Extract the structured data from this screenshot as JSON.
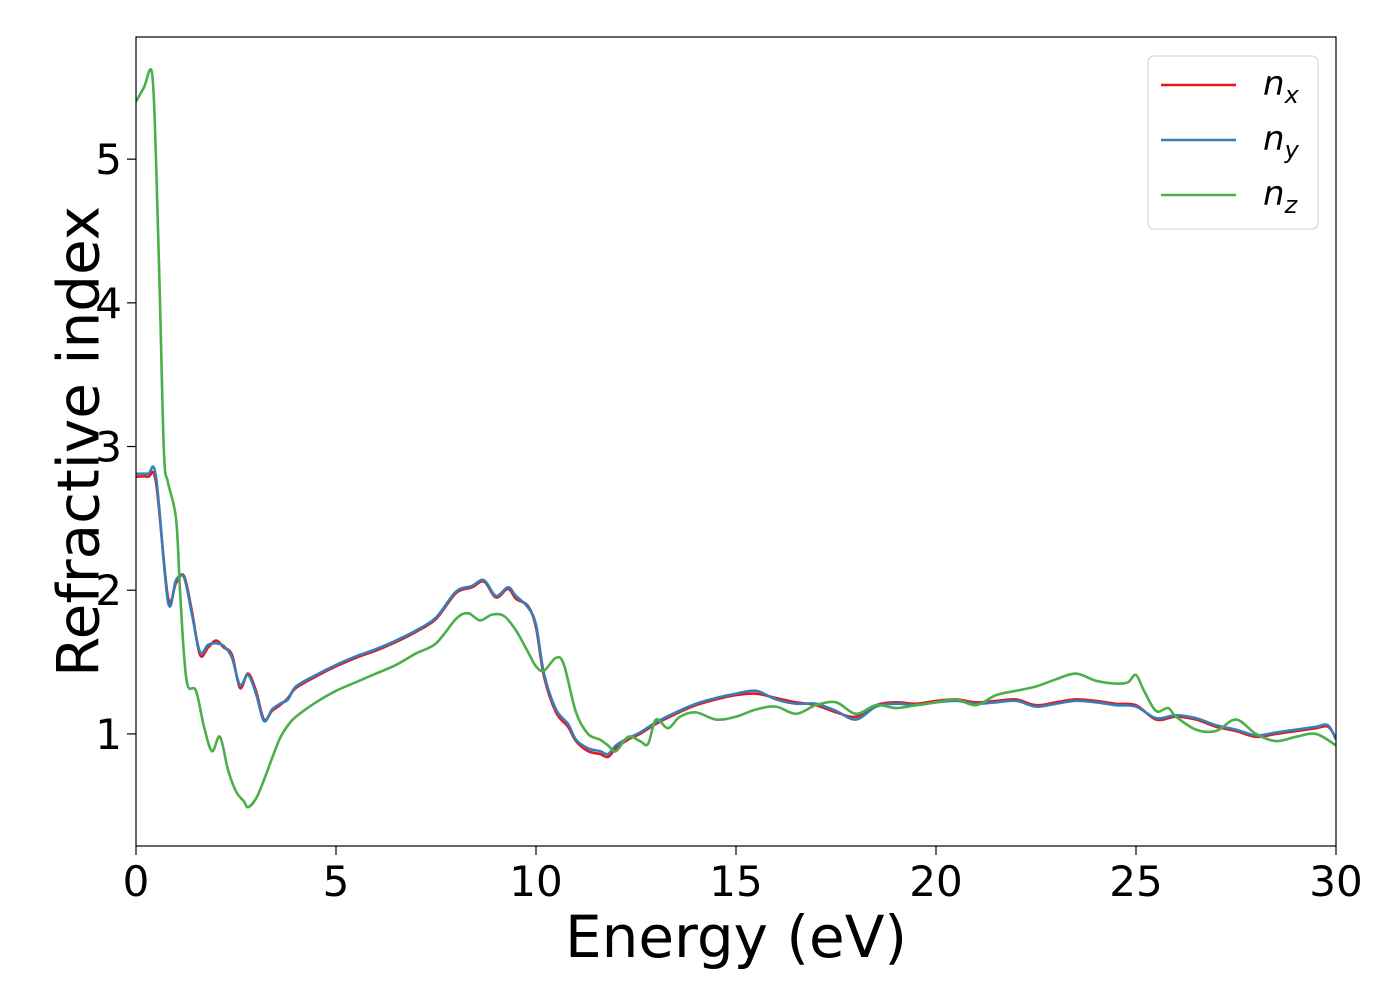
{
  "chart_data": {
    "type": "line",
    "xlabel": "Energy (eV)",
    "ylabel": "Refractive index",
    "xlim": [
      0,
      30
    ],
    "ylim": [
      0.22,
      5.85
    ],
    "xticks": [
      0,
      5,
      10,
      15,
      20,
      25,
      30
    ],
    "yticks": [
      1,
      2,
      3,
      4,
      5
    ],
    "grid": false,
    "legend_position": "top-right",
    "series": [
      {
        "name": "n_x",
        "label_base": "n",
        "label_sub": "x",
        "color": "#e41a1c",
        "x": [
          0,
          0.3,
          0.5,
          0.8,
          1.0,
          1.2,
          1.4,
          1.6,
          1.8,
          2.0,
          2.2,
          2.4,
          2.6,
          2.8,
          3.0,
          3.2,
          3.4,
          3.6,
          3.8,
          4.0,
          4.5,
          5.0,
          5.5,
          6.0,
          6.5,
          7.0,
          7.5,
          8.0,
          8.4,
          8.7,
          9.0,
          9.3,
          9.5,
          9.8,
          10.0,
          10.2,
          10.5,
          10.8,
          11.0,
          11.3,
          11.6,
          11.8,
          12.0,
          12.3,
          12.6,
          13.0,
          13.5,
          14.0,
          14.5,
          15.0,
          15.5,
          16.0,
          16.5,
          17.0,
          17.5,
          18.0,
          18.5,
          19.0,
          19.5,
          20.0,
          20.5,
          21.0,
          21.5,
          22.0,
          22.5,
          23.0,
          23.5,
          24.0,
          24.5,
          25.0,
          25.5,
          26.0,
          26.5,
          27.0,
          27.5,
          28.0,
          28.5,
          29.0,
          29.5,
          29.8,
          30.0
        ],
        "values": [
          2.79,
          2.79,
          2.75,
          1.95,
          2.05,
          2.1,
          1.85,
          1.55,
          1.6,
          1.65,
          1.6,
          1.55,
          1.32,
          1.42,
          1.3,
          1.1,
          1.16,
          1.2,
          1.25,
          1.32,
          1.4,
          1.47,
          1.53,
          1.58,
          1.64,
          1.71,
          1.8,
          1.98,
          2.02,
          2.06,
          1.95,
          2.01,
          1.94,
          1.89,
          1.74,
          1.4,
          1.15,
          1.05,
          0.95,
          0.88,
          0.86,
          0.84,
          0.9,
          0.96,
          1.0,
          1.07,
          1.14,
          1.2,
          1.24,
          1.27,
          1.28,
          1.25,
          1.22,
          1.2,
          1.15,
          1.12,
          1.2,
          1.22,
          1.21,
          1.23,
          1.24,
          1.22,
          1.23,
          1.24,
          1.2,
          1.22,
          1.24,
          1.23,
          1.21,
          1.2,
          1.1,
          1.12,
          1.1,
          1.05,
          1.02,
          0.98,
          1.0,
          1.02,
          1.04,
          1.05,
          0.97
        ]
      },
      {
        "name": "n_y",
        "label_base": "n",
        "label_sub": "y",
        "color": "#377eb8",
        "x": [
          0,
          0.3,
          0.5,
          0.8,
          1.0,
          1.2,
          1.4,
          1.6,
          1.8,
          2.0,
          2.2,
          2.4,
          2.6,
          2.8,
          3.0,
          3.2,
          3.4,
          3.6,
          3.8,
          4.0,
          4.5,
          5.0,
          5.5,
          6.0,
          6.5,
          7.0,
          7.5,
          8.0,
          8.4,
          8.7,
          9.0,
          9.3,
          9.5,
          9.8,
          10.0,
          10.2,
          10.5,
          10.8,
          11.0,
          11.3,
          11.6,
          11.8,
          12.0,
          12.3,
          12.6,
          13.0,
          13.5,
          14.0,
          14.5,
          15.0,
          15.5,
          16.0,
          16.5,
          17.0,
          17.5,
          18.0,
          18.5,
          19.0,
          19.5,
          20.0,
          20.5,
          21.0,
          21.5,
          22.0,
          22.5,
          23.0,
          23.5,
          24.0,
          24.5,
          25.0,
          25.5,
          26.0,
          26.5,
          27.0,
          27.5,
          28.0,
          28.5,
          29.0,
          29.5,
          29.8,
          30.0
        ],
        "values": [
          2.81,
          2.81,
          2.79,
          1.92,
          2.07,
          2.09,
          1.83,
          1.57,
          1.62,
          1.63,
          1.61,
          1.53,
          1.34,
          1.41,
          1.28,
          1.09,
          1.17,
          1.21,
          1.24,
          1.33,
          1.41,
          1.48,
          1.54,
          1.59,
          1.65,
          1.72,
          1.81,
          1.99,
          2.03,
          2.07,
          1.96,
          2.02,
          1.96,
          1.88,
          1.76,
          1.42,
          1.17,
          1.07,
          0.96,
          0.9,
          0.88,
          0.86,
          0.92,
          0.97,
          1.01,
          1.08,
          1.15,
          1.21,
          1.25,
          1.28,
          1.3,
          1.24,
          1.21,
          1.21,
          1.16,
          1.1,
          1.19,
          1.21,
          1.2,
          1.22,
          1.23,
          1.21,
          1.22,
          1.23,
          1.19,
          1.21,
          1.23,
          1.22,
          1.2,
          1.19,
          1.11,
          1.13,
          1.11,
          1.06,
          1.03,
          0.99,
          1.01,
          1.03,
          1.05,
          1.06,
          0.96
        ]
      },
      {
        "name": "n_z",
        "label_base": "n",
        "label_sub": "z",
        "color": "#4daf4a",
        "x": [
          0,
          0.2,
          0.4,
          0.5,
          0.6,
          0.7,
          0.8,
          1.0,
          1.1,
          1.2,
          1.3,
          1.5,
          1.7,
          1.9,
          2.1,
          2.3,
          2.5,
          2.7,
          2.8,
          3.0,
          3.2,
          3.4,
          3.6,
          3.8,
          4.0,
          4.5,
          5.0,
          5.5,
          6.0,
          6.5,
          7.0,
          7.5,
          8.0,
          8.3,
          8.6,
          8.9,
          9.2,
          9.5,
          9.8,
          10.0,
          10.2,
          10.5,
          10.7,
          11.0,
          11.3,
          11.6,
          11.8,
          12.0,
          12.3,
          12.6,
          12.8,
          13.0,
          13.3,
          13.6,
          14.0,
          14.5,
          15.0,
          15.5,
          16.0,
          16.5,
          17.0,
          17.5,
          18.0,
          18.5,
          19.0,
          19.5,
          20.0,
          20.5,
          21.0,
          21.5,
          22.0,
          22.5,
          23.0,
          23.5,
          24.0,
          24.5,
          24.8,
          25.0,
          25.2,
          25.5,
          25.8,
          26.0,
          26.5,
          27.0,
          27.5,
          28.0,
          28.5,
          29.0,
          29.5,
          30.0
        ],
        "values": [
          5.4,
          5.5,
          5.6,
          5.0,
          4.0,
          2.95,
          2.75,
          2.5,
          2.0,
          1.55,
          1.33,
          1.3,
          1.05,
          0.88,
          0.98,
          0.75,
          0.6,
          0.53,
          0.49,
          0.55,
          0.68,
          0.83,
          0.97,
          1.06,
          1.12,
          1.22,
          1.3,
          1.36,
          1.42,
          1.48,
          1.56,
          1.63,
          1.8,
          1.84,
          1.79,
          1.83,
          1.82,
          1.72,
          1.57,
          1.47,
          1.44,
          1.53,
          1.48,
          1.15,
          1.0,
          0.96,
          0.92,
          0.88,
          0.98,
          0.95,
          0.93,
          1.1,
          1.04,
          1.12,
          1.15,
          1.1,
          1.12,
          1.17,
          1.19,
          1.14,
          1.2,
          1.22,
          1.14,
          1.2,
          1.18,
          1.2,
          1.22,
          1.24,
          1.2,
          1.27,
          1.3,
          1.33,
          1.38,
          1.42,
          1.37,
          1.35,
          1.36,
          1.41,
          1.3,
          1.16,
          1.18,
          1.12,
          1.03,
          1.02,
          1.1,
          1.0,
          0.95,
          0.98,
          1.0,
          0.92
        ]
      }
    ]
  }
}
